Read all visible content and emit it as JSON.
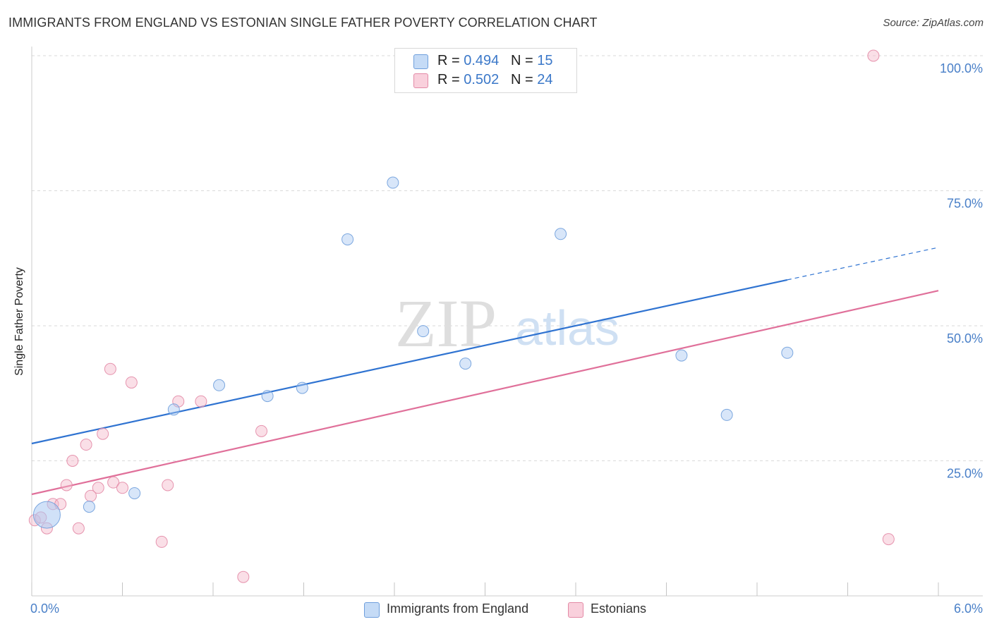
{
  "title": "IMMIGRANTS FROM ENGLAND VS ESTONIAN SINGLE FATHER POVERTY CORRELATION CHART",
  "source": "Source: ZipAtlas.com",
  "watermark": {
    "zip": "ZIP",
    "atlas": "atlas"
  },
  "legend": {
    "rows": [
      {
        "r_label": "R = ",
        "r_value": "0.494",
        "n_label": "N = ",
        "n_value": "15",
        "color": "#a9c8f2"
      },
      {
        "r_label": "R = ",
        "r_value": "0.502",
        "n_label": "N = ",
        "n_value": "24",
        "color": "#f5b8c9"
      }
    ]
  },
  "bottom_legend": [
    {
      "label": "Immigrants from England",
      "color": "#a9c8f2"
    },
    {
      "label": "Estonians",
      "color": "#f5b8c9"
    }
  ],
  "chart_data": {
    "type": "scatter",
    "title": "IMMIGRANTS FROM ENGLAND VS ESTONIAN SINGLE FATHER POVERTY CORRELATION CHART",
    "xlabel": "",
    "ylabel": "Single Father Poverty",
    "xlim": [
      0,
      6
    ],
    "ylim": [
      0,
      100
    ],
    "x_tick_labels": [
      "0.0%",
      "6.0%"
    ],
    "y_tick_labels": [
      "25.0%",
      "50.0%",
      "75.0%",
      "100.0%"
    ],
    "y_ticks": [
      25,
      50,
      75,
      100
    ],
    "grid": true,
    "series": [
      {
        "name": "Immigrants from England",
        "color": "#a9c8f2",
        "edge": "#6f9fdc",
        "line_color": "#2f73d1",
        "trend": {
          "x0": 0,
          "y0": 28.2,
          "x1": 5.0,
          "y1": 58.5,
          "dash_x1": 6.0,
          "dash_y1": 64.5
        },
        "points": [
          {
            "x": 0.1,
            "y": 15.0,
            "big": true
          },
          {
            "x": 0.38,
            "y": 16.5
          },
          {
            "x": 0.68,
            "y": 19.0
          },
          {
            "x": 0.94,
            "y": 34.5
          },
          {
            "x": 1.24,
            "y": 39.0
          },
          {
            "x": 1.56,
            "y": 37.0
          },
          {
            "x": 1.79,
            "y": 38.5
          },
          {
            "x": 2.09,
            "y": 66.0
          },
          {
            "x": 2.39,
            "y": 76.5
          },
          {
            "x": 2.59,
            "y": 49.0
          },
          {
            "x": 2.87,
            "y": 43.0
          },
          {
            "x": 3.5,
            "y": 67.0
          },
          {
            "x": 4.3,
            "y": 44.5
          },
          {
            "x": 4.6,
            "y": 33.5
          },
          {
            "x": 5.0,
            "y": 45.0
          }
        ]
      },
      {
        "name": "Estonians",
        "color": "#f5b8c9",
        "edge": "#e38aa6",
        "line_color": "#e0709a",
        "trend": {
          "x0": 0,
          "y0": 18.8,
          "x1": 6.0,
          "y1": 56.5
        },
        "points": [
          {
            "x": 0.02,
            "y": 14.0
          },
          {
            "x": 0.06,
            "y": 14.5
          },
          {
            "x": 0.1,
            "y": 12.5
          },
          {
            "x": 0.14,
            "y": 17.0
          },
          {
            "x": 0.19,
            "y": 17.0
          },
          {
            "x": 0.23,
            "y": 20.5
          },
          {
            "x": 0.27,
            "y": 25.0
          },
          {
            "x": 0.31,
            "y": 12.5
          },
          {
            "x": 0.36,
            "y": 28.0
          },
          {
            "x": 0.39,
            "y": 18.5
          },
          {
            "x": 0.44,
            "y": 20.0
          },
          {
            "x": 0.47,
            "y": 30.0
          },
          {
            "x": 0.52,
            "y": 42.0
          },
          {
            "x": 0.54,
            "y": 21.0
          },
          {
            "x": 0.6,
            "y": 20.0
          },
          {
            "x": 0.66,
            "y": 39.5
          },
          {
            "x": 0.86,
            "y": 10.0
          },
          {
            "x": 0.9,
            "y": 20.5
          },
          {
            "x": 0.97,
            "y": 36.0
          },
          {
            "x": 1.12,
            "y": 36.0
          },
          {
            "x": 1.4,
            "y": 3.5
          },
          {
            "x": 1.52,
            "y": 30.5
          },
          {
            "x": 5.57,
            "y": 100.0
          },
          {
            "x": 5.67,
            "y": 10.5
          }
        ]
      }
    ]
  }
}
